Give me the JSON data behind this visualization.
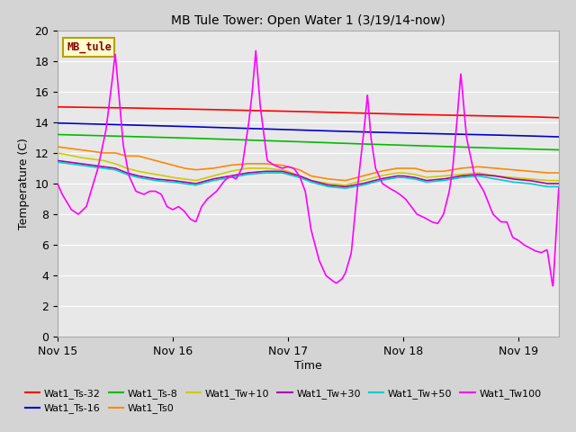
{
  "title": "MB Tule Tower: Open Water 1 (3/19/14-now)",
  "xlabel": "Time",
  "ylabel": "Temperature (C)",
  "ylim": [
    0,
    20
  ],
  "xlim": [
    0.0,
    4.35
  ],
  "bg_color": "#e8e8e8",
  "grid_color": "#ffffff",
  "fig_bg_color": "#d4d4d4",
  "annotation_label": "MB_tule",
  "annotation_color": "#8b0000",
  "annotation_bg": "#ffffcc",
  "annotation_border": "#b8a000",
  "series_colors": {
    "Wat1_Ts-32": "#ff0000",
    "Wat1_Ts-16": "#0000cc",
    "Wat1_Ts-8": "#00bb00",
    "Wat1_Ts0": "#ff8800",
    "Wat1_Tw+10": "#cccc00",
    "Wat1_Tw+30": "#aa00aa",
    "Wat1_Tw+50": "#00cccc",
    "Wat1_Tw100": "#ff00ff"
  },
  "xtick_labels": [
    "Nov 15",
    "Nov 16",
    "Nov 17",
    "Nov 18",
    "Nov 19"
  ],
  "xtick_positions": [
    0,
    1,
    2,
    3,
    4
  ],
  "ytick_positions": [
    0,
    2,
    4,
    6,
    8,
    10,
    12,
    14,
    16,
    18,
    20
  ],
  "figsize": [
    6.4,
    4.8
  ],
  "dpi": 100,
  "linewidth": 1.2,
  "tw100_x": [
    0.0,
    0.04,
    0.08,
    0.12,
    0.18,
    0.25,
    0.35,
    0.42,
    0.47,
    0.5,
    0.53,
    0.57,
    0.62,
    0.68,
    0.75,
    0.8,
    0.85,
    0.9,
    0.95,
    1.0,
    1.05,
    1.1,
    1.15,
    1.2,
    1.25,
    1.3,
    1.38,
    1.45,
    1.5,
    1.55,
    1.6,
    1.63,
    1.66,
    1.69,
    1.72,
    1.76,
    1.82,
    1.88,
    1.95,
    2.0,
    2.05,
    2.1,
    2.15,
    2.2,
    2.27,
    2.33,
    2.38,
    2.42,
    2.47,
    2.5,
    2.55,
    2.6,
    2.63,
    2.66,
    2.69,
    2.72,
    2.76,
    2.82,
    2.88,
    2.93,
    2.97,
    3.02,
    3.07,
    3.12,
    3.18,
    3.25,
    3.3,
    3.35,
    3.4,
    3.43,
    3.46,
    3.5,
    3.55,
    3.62,
    3.7,
    3.78,
    3.85,
    3.9,
    3.95,
    4.0,
    4.05,
    4.1,
    4.15,
    4.2,
    4.25,
    4.3,
    4.35
  ],
  "tw100_y": [
    10.0,
    9.3,
    8.8,
    8.3,
    8.0,
    8.5,
    11.0,
    13.5,
    16.5,
    18.5,
    16.0,
    12.5,
    10.5,
    9.5,
    9.3,
    9.5,
    9.5,
    9.3,
    8.5,
    8.3,
    8.5,
    8.2,
    7.7,
    7.5,
    8.5,
    9.0,
    9.5,
    10.2,
    10.5,
    10.3,
    11.0,
    12.5,
    14.0,
    16.0,
    18.7,
    15.0,
    11.5,
    11.2,
    11.0,
    11.1,
    11.0,
    10.5,
    9.5,
    7.0,
    5.0,
    4.0,
    3.7,
    3.5,
    3.8,
    4.2,
    5.5,
    9.5,
    11.5,
    13.5,
    15.8,
    13.0,
    11.0,
    10.0,
    9.7,
    9.5,
    9.3,
    9.0,
    8.5,
    8.0,
    7.8,
    7.5,
    7.4,
    8.0,
    9.5,
    11.0,
    13.5,
    17.2,
    13.0,
    10.5,
    9.5,
    8.0,
    7.5,
    7.5,
    6.5,
    6.3,
    6.0,
    5.8,
    5.6,
    5.5,
    5.7,
    3.2,
    9.7
  ],
  "wavy_x": [
    0.0,
    0.2,
    0.4,
    0.5,
    0.6,
    0.7,
    0.85,
    1.0,
    1.1,
    1.2,
    1.35,
    1.5,
    1.65,
    1.8,
    1.95,
    2.0,
    2.1,
    2.2,
    2.35,
    2.5,
    2.65,
    2.8,
    2.95,
    3.0,
    3.1,
    3.2,
    3.35,
    3.5,
    3.65,
    3.8,
    3.95,
    4.1,
    4.25,
    4.35
  ],
  "ts0_y": [
    12.4,
    12.2,
    12.0,
    12.0,
    11.8,
    11.8,
    11.5,
    11.2,
    11.0,
    10.9,
    11.0,
    11.2,
    11.3,
    11.3,
    11.2,
    11.1,
    10.9,
    10.5,
    10.3,
    10.2,
    10.5,
    10.8,
    11.0,
    11.0,
    11.0,
    10.8,
    10.8,
    11.0,
    11.1,
    11.0,
    10.9,
    10.8,
    10.7,
    10.7
  ],
  "tw10_y": [
    12.0,
    11.7,
    11.5,
    11.3,
    11.0,
    10.8,
    10.6,
    10.4,
    10.3,
    10.2,
    10.5,
    10.8,
    11.0,
    11.0,
    10.9,
    10.8,
    10.5,
    10.2,
    10.0,
    9.9,
    10.2,
    10.5,
    10.7,
    10.7,
    10.6,
    10.4,
    10.5,
    10.6,
    10.7,
    10.5,
    10.4,
    10.3,
    10.2,
    10.2
  ],
  "tw30_y": [
    11.5,
    11.3,
    11.1,
    11.0,
    10.7,
    10.5,
    10.3,
    10.2,
    10.1,
    10.0,
    10.3,
    10.5,
    10.7,
    10.8,
    10.8,
    10.7,
    10.5,
    10.2,
    9.9,
    9.8,
    10.0,
    10.3,
    10.5,
    10.5,
    10.4,
    10.2,
    10.3,
    10.5,
    10.6,
    10.5,
    10.3,
    10.2,
    10.0,
    10.0
  ],
  "tw50_y": [
    11.4,
    11.2,
    11.0,
    10.9,
    10.6,
    10.4,
    10.2,
    10.1,
    10.0,
    9.9,
    10.2,
    10.4,
    10.6,
    10.7,
    10.7,
    10.6,
    10.4,
    10.1,
    9.8,
    9.7,
    9.9,
    10.2,
    10.4,
    10.4,
    10.3,
    10.1,
    10.2,
    10.4,
    10.5,
    10.3,
    10.1,
    10.0,
    9.8,
    9.8
  ],
  "flat_x": [
    0.0,
    0.5,
    1.0,
    1.5,
    2.0,
    2.5,
    3.0,
    3.5,
    4.0,
    4.35
  ],
  "ts32_y": [
    15.0,
    14.95,
    14.88,
    14.8,
    14.72,
    14.62,
    14.52,
    14.45,
    14.38,
    14.3
  ],
  "ts16_y": [
    13.95,
    13.85,
    13.75,
    13.63,
    13.52,
    13.4,
    13.3,
    13.22,
    13.13,
    13.05
  ],
  "ts8_y": [
    13.2,
    13.1,
    13.0,
    12.88,
    12.76,
    12.62,
    12.5,
    12.38,
    12.28,
    12.2
  ]
}
